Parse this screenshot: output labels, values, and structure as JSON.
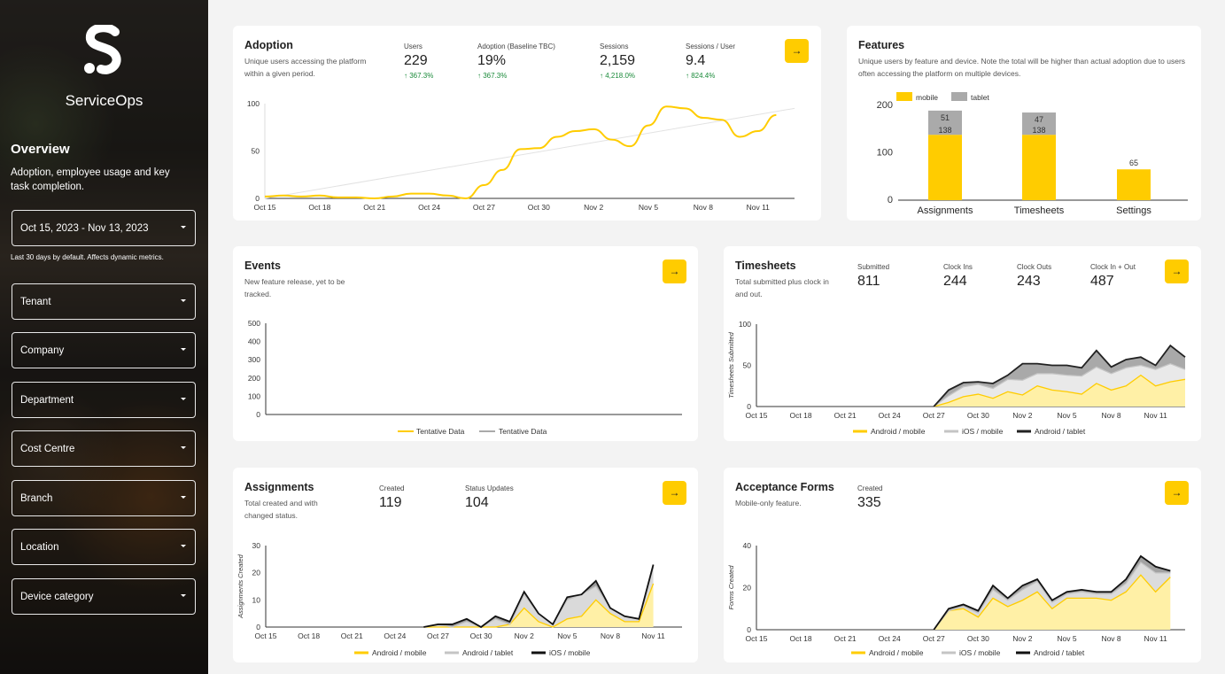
{
  "sidebar": {
    "brand": "ServiceOps",
    "overview_title": "Overview",
    "overview_desc": "Adoption, employee usage and key task completion.",
    "date_range": "Oct 15, 2023 - Nov 13, 2023",
    "date_hint": "Last 30 days by default. Affects dynamic metrics.",
    "filters": [
      "Tenant",
      "Company",
      "Department",
      "Cost Centre",
      "Branch",
      "Location",
      "Device category"
    ]
  },
  "adoption": {
    "title": "Adoption",
    "desc": "Unique users accessing the platform within a given period.",
    "arrow": "→",
    "metrics": [
      {
        "label": "Users",
        "value": "229",
        "delta": "↑ 367.3%"
      },
      {
        "label": "Adoption (Baseline TBC)",
        "value": "19%",
        "delta": "↑ 367.3%"
      },
      {
        "label": "Sessions",
        "value": "2,159",
        "delta": "↑ 4,218.0%"
      },
      {
        "label": "Sessions / User",
        "value": "9.4",
        "delta": "↑ 824.4%"
      }
    ]
  },
  "features": {
    "title": "Features",
    "desc": "Unique users by feature and device. Note the total will be higher than actual adoption due to users often accessing the platform on multiple devices."
  },
  "events": {
    "title": "Events",
    "desc": "New feature release, yet to be tracked.",
    "arrow": "→"
  },
  "timesheets": {
    "title": "Timesheets",
    "desc": "Total submitted plus clock in and out.",
    "arrow": "→",
    "metrics": [
      {
        "label": "Submitted",
        "value": "811"
      },
      {
        "label": "Clock Ins",
        "value": "244"
      },
      {
        "label": "Clock Outs",
        "value": "243"
      },
      {
        "label": "Clock In + Out",
        "value": "487"
      }
    ]
  },
  "assignments": {
    "title": "Assignments",
    "desc": "Total created and with changed status.",
    "arrow": "→",
    "metrics": [
      {
        "label": "Created",
        "value": "119"
      },
      {
        "label": "Status Updates",
        "value": "104"
      }
    ]
  },
  "acceptance": {
    "title": "Acceptance Forms",
    "desc": "Mobile-only feature.",
    "arrow": "→",
    "metrics": [
      {
        "label": "Created",
        "value": "335"
      }
    ]
  },
  "colors": {
    "accent": "#ffcc00",
    "yellow_fill": "#fff0a6",
    "gray": "#aaaaaa",
    "dark": "#111111"
  },
  "chart_data": [
    {
      "id": "adoption",
      "type": "line",
      "x": [
        "Oct 15",
        "Oct 16",
        "Oct 17",
        "Oct 18",
        "Oct 19",
        "Oct 20",
        "Oct 21",
        "Oct 22",
        "Oct 23",
        "Oct 24",
        "Oct 25",
        "Oct 26",
        "Oct 27",
        "Oct 28",
        "Oct 29",
        "Oct 30",
        "Oct 31",
        "Nov 1",
        "Nov 2",
        "Nov 3",
        "Nov 4",
        "Nov 5",
        "Nov 6",
        "Nov 7",
        "Nov 8",
        "Nov 9",
        "Nov 10",
        "Nov 11",
        "Nov 12",
        "Nov 13"
      ],
      "x_ticks": [
        "Oct 15",
        "Oct 18",
        "Oct 21",
        "Oct 24",
        "Oct 27",
        "Oct 30",
        "Nov 2",
        "Nov 5",
        "Nov 8",
        "Nov 11"
      ],
      "series": [
        {
          "values": [
            2,
            3,
            2,
            3,
            1,
            1,
            0,
            2,
            5,
            5,
            3,
            0,
            14,
            30,
            52,
            53,
            65,
            71,
            73,
            62,
            55,
            77,
            97,
            95,
            85,
            83,
            65,
            71,
            88,
            null
          ]
        }
      ],
      "trendline": [
        0,
        95
      ],
      "ylim": [
        0,
        100
      ],
      "y_ticks": [
        0,
        50,
        100
      ]
    },
    {
      "id": "features",
      "type": "bar",
      "categories": [
        "Assignments",
        "Timesheets",
        "Settings"
      ],
      "series": [
        {
          "name": "mobile",
          "values": [
            138,
            138,
            65
          ]
        },
        {
          "name": "tablet",
          "values": [
            51,
            47,
            0
          ]
        }
      ],
      "data_labels": [
        [
          "138",
          "51"
        ],
        [
          "138",
          "47"
        ],
        [
          "65",
          ""
        ]
      ],
      "ylim": [
        0,
        200
      ],
      "y_ticks": [
        0,
        100,
        200
      ],
      "legend": "top-left"
    },
    {
      "id": "events",
      "type": "line",
      "series": [
        {
          "name": "Tentative Data",
          "values": []
        },
        {
          "name": "Tentative Data",
          "values": []
        }
      ],
      "ylim": [
        0,
        500
      ],
      "y_ticks": [
        0,
        100,
        200,
        300,
        400,
        500
      ],
      "legend": "bottom"
    },
    {
      "id": "timesheets",
      "type": "area",
      "x": [
        "Oct 15",
        "Oct 16",
        "Oct 17",
        "Oct 18",
        "Oct 19",
        "Oct 20",
        "Oct 21",
        "Oct 22",
        "Oct 23",
        "Oct 24",
        "Oct 25",
        "Oct 26",
        "Oct 27",
        "Oct 28",
        "Oct 29",
        "Oct 30",
        "Oct 31",
        "Nov 1",
        "Nov 2",
        "Nov 3",
        "Nov 4",
        "Nov 5",
        "Nov 6",
        "Nov 7",
        "Nov 8",
        "Nov 9",
        "Nov 10",
        "Nov 11",
        "Nov 12",
        "Nov 13"
      ],
      "x_ticks": [
        "Oct 15",
        "Oct 18",
        "Oct 21",
        "Oct 24",
        "Oct 27",
        "Oct 30",
        "Nov 2",
        "Nov 5",
        "Nov 8",
        "Nov 11"
      ],
      "ylabel": "Timesheets Submitted",
      "series": [
        {
          "name": "Android / mobile",
          "values": [
            0,
            0,
            0,
            0,
            0,
            0,
            0,
            0,
            0,
            0,
            0,
            0,
            0,
            5,
            12,
            15,
            10,
            18,
            14,
            25,
            20,
            18,
            15,
            28,
            20,
            25,
            38,
            25,
            30,
            33
          ]
        },
        {
          "name": "iOS / mobile",
          "values": [
            0,
            0,
            0,
            0,
            0,
            0,
            0,
            0,
            0,
            0,
            0,
            0,
            0,
            8,
            12,
            12,
            12,
            15,
            18,
            15,
            20,
            20,
            22,
            20,
            20,
            22,
            12,
            20,
            22,
            12
          ]
        },
        {
          "name": "Android / tablet",
          "values": [
            0,
            0,
            0,
            0,
            0,
            0,
            0,
            0,
            0,
            0,
            0,
            0,
            0,
            7,
            5,
            3,
            6,
            5,
            20,
            12,
            10,
            12,
            10,
            20,
            8,
            10,
            10,
            5,
            22,
            15
          ]
        }
      ],
      "ylim": [
        0,
        100
      ],
      "y_ticks": [
        0,
        50,
        100
      ],
      "legend": "bottom"
    },
    {
      "id": "assignments",
      "type": "area",
      "x": [
        "Oct 15",
        "Oct 16",
        "Oct 17",
        "Oct 18",
        "Oct 19",
        "Oct 20",
        "Oct 21",
        "Oct 22",
        "Oct 23",
        "Oct 24",
        "Oct 25",
        "Oct 26",
        "Oct 27",
        "Oct 28",
        "Oct 29",
        "Oct 30",
        "Oct 31",
        "Nov 1",
        "Nov 2",
        "Nov 3",
        "Nov 4",
        "Nov 5",
        "Nov 6",
        "Nov 7",
        "Nov 8",
        "Nov 9",
        "Nov 10",
        "Nov 11",
        "Nov 12",
        "Nov 13"
      ],
      "x_ticks": [
        "Oct 15",
        "Oct 18",
        "Oct 21",
        "Oct 24",
        "Oct 27",
        "Oct 30",
        "Nov 2",
        "Nov 5",
        "Nov 8",
        "Nov 11"
      ],
      "ylabel": "Assignments Created",
      "series": [
        {
          "name": "Android / mobile",
          "values": [
            0,
            0,
            0,
            0,
            0,
            0,
            0,
            0,
            0,
            0,
            0,
            0,
            0,
            0,
            0,
            0,
            0,
            1,
            7,
            2,
            0,
            3,
            4,
            10,
            5,
            2,
            2,
            16,
            0,
            0
          ]
        },
        {
          "name": "Android / tablet",
          "values": [
            0,
            0,
            0,
            0,
            0,
            0,
            0,
            0,
            0,
            0,
            0,
            0,
            1,
            0,
            2,
            0,
            3,
            0,
            5,
            3,
            1,
            7,
            8,
            5,
            2,
            2,
            1,
            6,
            0,
            0
          ]
        },
        {
          "name": "iOS / mobile",
          "values": [
            0,
            0,
            0,
            0,
            0,
            0,
            0,
            0,
            0,
            0,
            0,
            0,
            0,
            1,
            1,
            0,
            1,
            1,
            1,
            0,
            0,
            1,
            0,
            2,
            0,
            0,
            0,
            1,
            0,
            0
          ]
        }
      ],
      "ylim": [
        0,
        30
      ],
      "y_ticks": [
        0,
        10,
        20,
        30
      ],
      "legend": "bottom"
    },
    {
      "id": "acceptance",
      "type": "area",
      "x": [
        "Oct 15",
        "Oct 16",
        "Oct 17",
        "Oct 18",
        "Oct 19",
        "Oct 20",
        "Oct 21",
        "Oct 22",
        "Oct 23",
        "Oct 24",
        "Oct 25",
        "Oct 26",
        "Oct 27",
        "Oct 28",
        "Oct 29",
        "Oct 30",
        "Oct 31",
        "Nov 1",
        "Nov 2",
        "Nov 3",
        "Nov 4",
        "Nov 5",
        "Nov 6",
        "Nov 7",
        "Nov 8",
        "Nov 9",
        "Nov 10",
        "Nov 11",
        "Nov 12",
        "Nov 13"
      ],
      "x_ticks": [
        "Oct 15",
        "Oct 18",
        "Oct 21",
        "Oct 24",
        "Oct 27",
        "Oct 30",
        "Nov 2",
        "Nov 5",
        "Nov 8",
        "Nov 11"
      ],
      "ylabel": "Forms Created",
      "series": [
        {
          "name": "Android / mobile",
          "values": [
            0,
            0,
            0,
            0,
            0,
            0,
            0,
            0,
            0,
            0,
            0,
            0,
            0,
            9,
            10,
            6,
            15,
            11,
            14,
            18,
            10,
            15,
            15,
            15,
            14,
            18,
            26,
            18,
            25,
            0
          ]
        },
        {
          "name": "iOS / mobile",
          "values": [
            0,
            0,
            0,
            0,
            0,
            0,
            0,
            0,
            0,
            0,
            0,
            0,
            0,
            0,
            1,
            2,
            4,
            3,
            5,
            5,
            3,
            2,
            3,
            2,
            3,
            4,
            6,
            9,
            2,
            0
          ]
        },
        {
          "name": "Android / tablet",
          "values": [
            0,
            0,
            0,
            0,
            0,
            0,
            0,
            0,
            0,
            0,
            0,
            0,
            0,
            1,
            1,
            1,
            2,
            1,
            2,
            1,
            1,
            1,
            1,
            1,
            1,
            2,
            3,
            3,
            1,
            0
          ]
        }
      ],
      "ylim": [
        0,
        40
      ],
      "y_ticks": [
        0,
        20,
        40
      ],
      "legend": "bottom"
    }
  ]
}
